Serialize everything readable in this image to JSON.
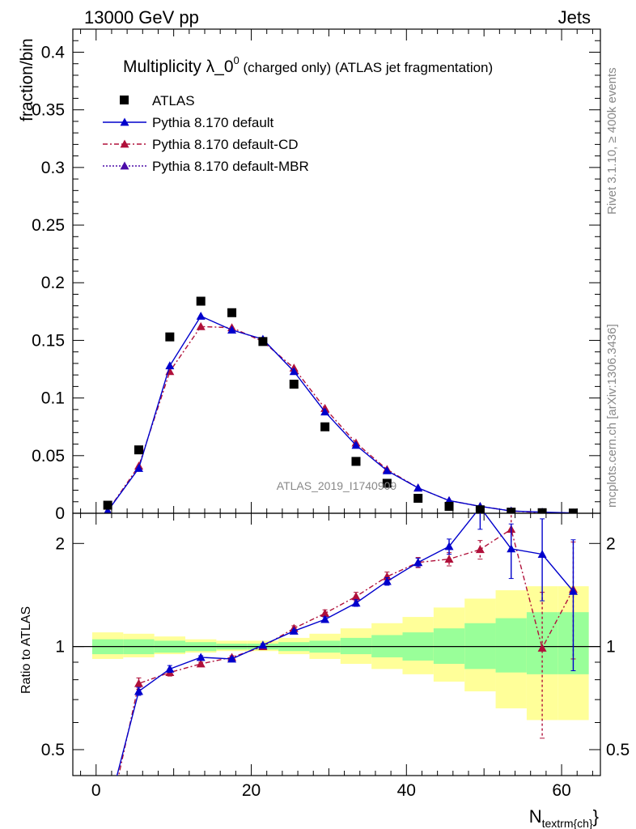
{
  "header": {
    "left": "13000 GeV pp",
    "right": "Jets"
  },
  "side_text": {
    "rivet": "Rivet 3.1.10, ≥ 400k events",
    "mcplots": "mcplots.cern.ch [arXiv:1306.3436]"
  },
  "watermark": "ATLAS_2019_I1740909",
  "chart_data": {
    "type": "scatter",
    "title": {
      "main": "Multiplicity λ_0",
      "sup": "0",
      "tail": " (charged only) (ATLAS jet fragmentation)"
    },
    "xlabel": {
      "main": "N",
      "sub": "textrm{ch}",
      "tail": "}"
    },
    "ylabel_top": "fraction/bin",
    "ylabel_bottom": "Ratio to ATLAS",
    "xlim": [
      -3,
      65
    ],
    "ylim_top": [
      0,
      0.42
    ],
    "ylim_bottom_log": [
      0.42,
      2.45
    ],
    "x_ticks": [
      "0",
      "20",
      "40",
      "60"
    ],
    "y_ticks_top": [
      "0",
      "0.05",
      "0.1",
      "0.15",
      "0.2",
      "0.25",
      "0.3",
      "0.35",
      "0.4"
    ],
    "y_ticks_bottom": [
      "0.5",
      "1",
      "2"
    ],
    "legend_position": "top-left",
    "x": [
      1.5,
      5.5,
      9.5,
      13.5,
      17.5,
      21.5,
      25.5,
      29.5,
      33.5,
      37.5,
      41.5,
      45.5,
      49.5,
      53.5,
      57.5,
      61.5
    ],
    "series": [
      {
        "name": "ATLAS",
        "color": "#000000",
        "values": [
          0.007,
          0.055,
          0.153,
          0.184,
          0.174,
          0.149,
          0.112,
          0.075,
          0.045,
          0.026,
          0.013,
          0.006,
          0.003,
          0.001,
          0.0005,
          0.0002
        ]
      },
      {
        "name": "Pythia 8.170 default",
        "color": "#0000cc",
        "values": [
          0.002,
          0.039,
          0.128,
          0.171,
          0.159,
          0.151,
          0.123,
          0.088,
          0.059,
          0.037,
          0.022,
          0.011,
          0.006,
          0.002,
          0.001,
          0.0003
        ],
        "ratio": [
          0.33,
          0.74,
          0.86,
          0.93,
          0.92,
          1.01,
          1.11,
          1.2,
          1.34,
          1.55,
          1.76,
          1.96,
          2.55,
          1.93,
          1.86,
          1.45
        ],
        "ratio_err": [
          0.03,
          0.02,
          0.02,
          0.01,
          0.01,
          0.01,
          0.01,
          0.02,
          0.03,
          0.04,
          0.05,
          0.1,
          0.35,
          0.35,
          0.5,
          0.6
        ]
      },
      {
        "name": "Pythia 8.170 default-CD",
        "color": "#b0103a",
        "values": [
          0.002,
          0.041,
          0.123,
          0.162,
          0.161,
          0.149,
          0.126,
          0.091,
          0.061,
          0.038,
          0.022,
          0.011,
          0.006,
          0.002,
          0.0005,
          0.0003
        ],
        "ratio": [
          0.3,
          0.78,
          0.84,
          0.89,
          0.93,
          1.0,
          1.13,
          1.25,
          1.4,
          1.6,
          1.76,
          1.8,
          1.92,
          2.2,
          0.99,
          1.47
        ],
        "ratio_err": [
          0.03,
          0.03,
          0.02,
          0.01,
          0.01,
          0.01,
          0.02,
          0.03,
          0.04,
          0.05,
          0.06,
          0.08,
          0.12,
          0.3,
          0.45,
          0.55
        ]
      },
      {
        "name": "Pythia 8.170 default-MBR",
        "color": "#4b0ca8",
        "values": []
      }
    ],
    "uncertainty_bands": {
      "x_edges": [
        -0.5,
        3.5,
        7.5,
        11.5,
        15.5,
        19.5,
        23.5,
        27.5,
        31.5,
        35.5,
        39.5,
        43.5,
        47.5,
        51.5,
        55.5,
        59.5,
        63.5
      ],
      "inner_lo": [
        0.95,
        0.95,
        0.96,
        0.97,
        0.98,
        0.98,
        0.97,
        0.96,
        0.95,
        0.93,
        0.91,
        0.89,
        0.86,
        0.84,
        0.83,
        0.83
      ],
      "inner_hi": [
        1.05,
        1.05,
        1.04,
        1.03,
        1.02,
        1.02,
        1.03,
        1.04,
        1.06,
        1.08,
        1.1,
        1.13,
        1.17,
        1.21,
        1.26,
        1.26
      ],
      "outer_lo": [
        0.92,
        0.93,
        0.95,
        0.96,
        0.97,
        0.97,
        0.95,
        0.92,
        0.89,
        0.86,
        0.83,
        0.79,
        0.74,
        0.66,
        0.61,
        0.61
      ],
      "outer_hi": [
        1.1,
        1.09,
        1.07,
        1.05,
        1.04,
        1.04,
        1.06,
        1.09,
        1.13,
        1.17,
        1.22,
        1.3,
        1.38,
        1.46,
        1.5,
        1.5
      ],
      "inner_color": "#99ff99",
      "outer_color": "#ffff99"
    }
  }
}
